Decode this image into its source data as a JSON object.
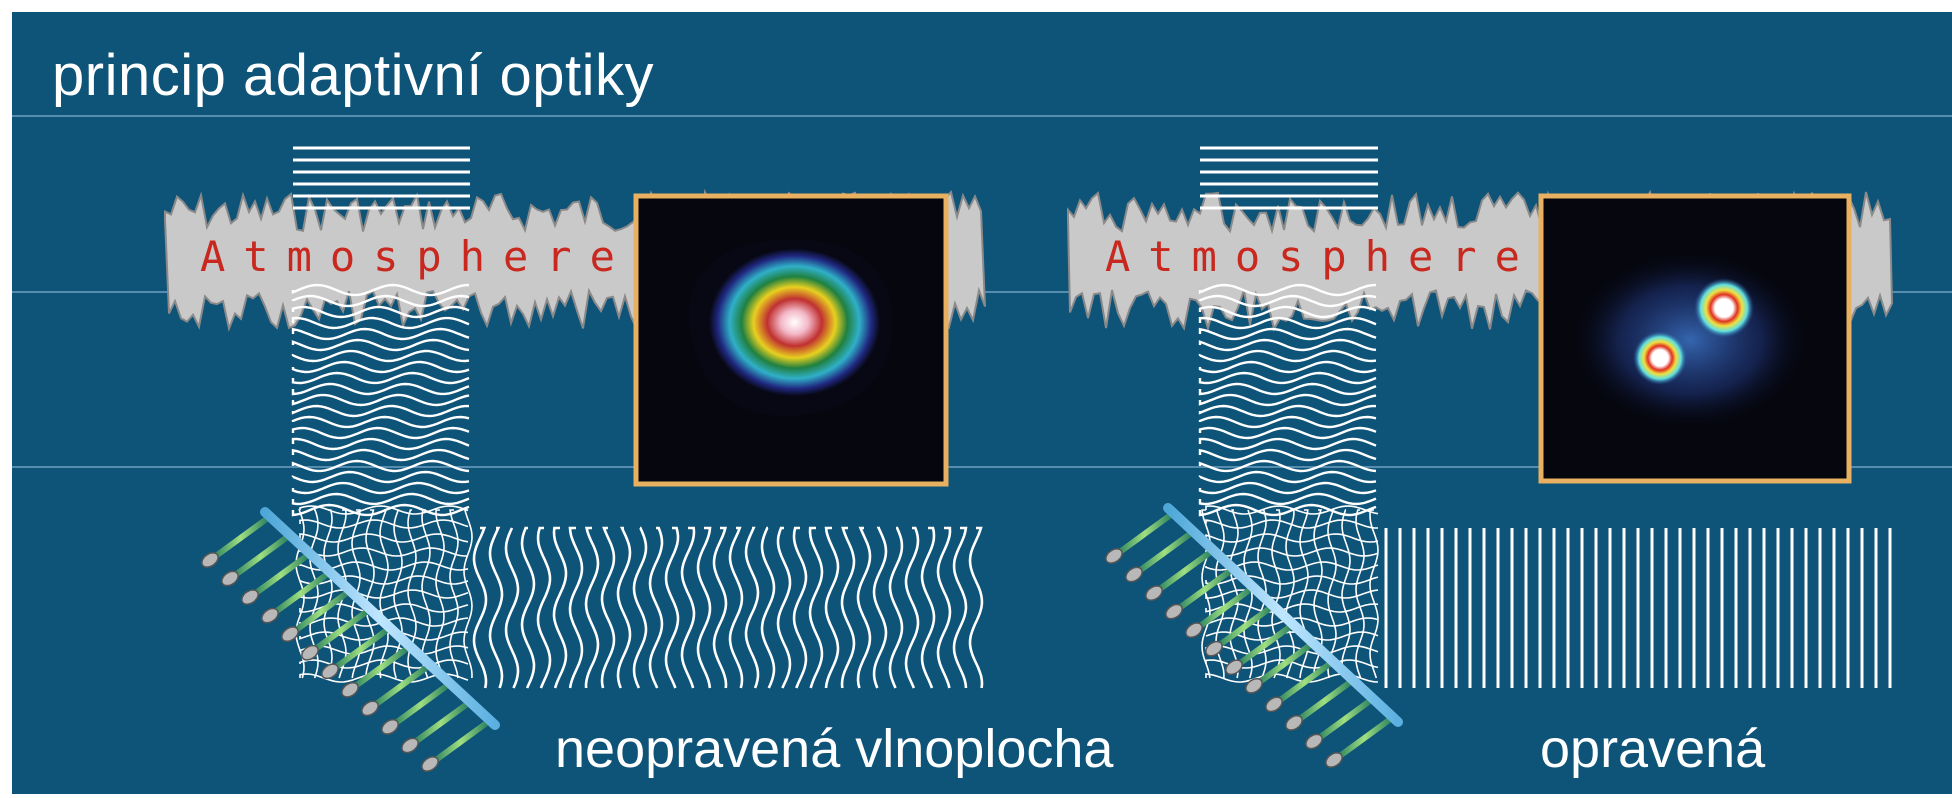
{
  "title": "princip adaptivní optiky",
  "atmosphere_label": "Atmosphere",
  "panels": [
    {
      "id": "uncorrected",
      "caption": "neopravená vlnoplocha",
      "image_type": "blurred-psf"
    },
    {
      "id": "corrected",
      "caption": "opravená",
      "image_type": "resolved-binary-star"
    }
  ],
  "colors": {
    "background": "#0e5378",
    "waves": "#ffffff",
    "atmosphere": "#c8c8c8",
    "atmosphere_text": "#c8281e",
    "frame": "#e8b060",
    "mirror": "#7fc8f0"
  }
}
